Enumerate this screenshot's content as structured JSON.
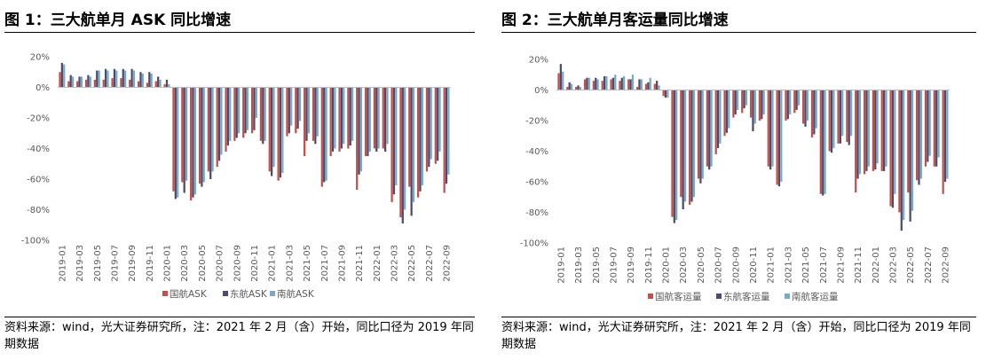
{
  "figures": [
    {
      "title": "图 1：三大航单月 ASK 同比增速",
      "note": "资料来源：wind，光大证券研究所，注：2021 年 2 月（含）开始，同比口径为 2019 年同期数据",
      "chart_data": {
        "type": "bar",
        "title": "",
        "xlabel": "",
        "ylabel": "",
        "ylim": [
          -100,
          20
        ],
        "yticks": [
          "20%",
          "0%",
          "-20%",
          "-40%",
          "-60%",
          "-80%",
          "-100%"
        ],
        "ytick_values": [
          20,
          0,
          -20,
          -40,
          -60,
          -80,
          -100
        ],
        "grid": false,
        "legend_position": "bottom",
        "categories": [
          "2019-01",
          "2019-02",
          "2019-03",
          "2019-04",
          "2019-05",
          "2019-06",
          "2019-07",
          "2019-08",
          "2019-09",
          "2019-10",
          "2019-11",
          "2019-12",
          "2020-01",
          "2020-02",
          "2020-03",
          "2020-04",
          "2020-05",
          "2020-06",
          "2020-07",
          "2020-08",
          "2020-09",
          "2020-10",
          "2020-11",
          "2020-12",
          "2021-01",
          "2021-02",
          "2021-03",
          "2021-04",
          "2021-05",
          "2021-06",
          "2021-07",
          "2021-08",
          "2021-09",
          "2021-10",
          "2021-11",
          "2021-12",
          "2022-01",
          "2022-02",
          "2022-03",
          "2022-04",
          "2022-05",
          "2022-06",
          "2022-07",
          "2022-08",
          "2022-09"
        ],
        "xtick_labels": [
          "2019-01",
          "2019-03",
          "2019-05",
          "2019-07",
          "2019-09",
          "2019-11",
          "2020-01",
          "2020-03",
          "2020-05",
          "2020-07",
          "2020-09",
          "2020-11",
          "2021-01",
          "2021-03",
          "2021-05",
          "2021-07",
          "2021-09",
          "2021-11",
          "2022-01",
          "2022-03",
          "2022-05",
          "2022-07",
          "2022-09"
        ],
        "series": [
          {
            "name": "国航ASK",
            "color": "#c0504d",
            "values": [
              10,
              4,
              4,
              5,
              5,
              5,
              6,
              6,
              5,
              4,
              3,
              4,
              2,
              -68,
              -62,
              -74,
              -63,
              -55,
              -52,
              -42,
              -35,
              -33,
              -30,
              -35,
              -55,
              -61,
              -32,
              -30,
              -45,
              -35,
              -65,
              -45,
              -42,
              -40,
              -67,
              -45,
              -40,
              -40,
              -75,
              -85,
              -65,
              -72,
              -55,
              -50,
              -69
            ]
          },
          {
            "name": "东航ASK",
            "color": "#4b4b6e",
            "values": [
              16,
              8,
              7,
              8,
              11,
              12,
              12,
              12,
              12,
              10,
              10,
              7,
              5,
              -73,
              -69,
              -72,
              -65,
              -60,
              -48,
              -38,
              -33,
              -30,
              -28,
              -37,
              -58,
              -59,
              -30,
              -27,
              -35,
              -37,
              -62,
              -42,
              -40,
              -38,
              -57,
              -45,
              -42,
              -42,
              -70,
              -89,
              -84,
              -68,
              -52,
              -48,
              -63
            ]
          },
          {
            "name": "南航ASK",
            "color": "#7aa9c4",
            "values": [
              15,
              7,
              7,
              7,
              11,
              11,
              11,
              11,
              11,
              9,
              9,
              5,
              2,
              -72,
              -61,
              -70,
              -62,
              -55,
              -44,
              -35,
              -30,
              -28,
              -20,
              -35,
              -52,
              -56,
              -25,
              -22,
              -30,
              -32,
              -61,
              -40,
              -37,
              -35,
              -55,
              -42,
              -40,
              -37,
              -64,
              -80,
              -75,
              -64,
              -47,
              -42,
              -57
            ]
          }
        ]
      }
    },
    {
      "title": "图 2：三大航单月客运量同比增速",
      "note": "资料来源：wind，光大证券研究所，注：2021 年 2 月（含）开始，同比口径为 2019 年同期数据",
      "chart_data": {
        "type": "bar",
        "title": "",
        "xlabel": "",
        "ylabel": "",
        "ylim": [
          -100,
          20
        ],
        "yticks": [
          "20%",
          "0%",
          "-20%",
          "-40%",
          "-60%",
          "-80%",
          "-100%"
        ],
        "ytick_values": [
          20,
          0,
          -20,
          -40,
          -60,
          -80,
          -100
        ],
        "grid": false,
        "legend_position": "bottom",
        "categories": [
          "2019-01",
          "2019-02",
          "2019-03",
          "2019-04",
          "2019-05",
          "2019-06",
          "2019-07",
          "2019-08",
          "2019-09",
          "2019-10",
          "2019-11",
          "2019-12",
          "2020-01",
          "2020-02",
          "2020-03",
          "2020-04",
          "2020-05",
          "2020-06",
          "2020-07",
          "2020-08",
          "2020-09",
          "2020-10",
          "2020-11",
          "2020-12",
          "2021-01",
          "2021-02",
          "2021-03",
          "2021-04",
          "2021-05",
          "2021-06",
          "2021-07",
          "2021-08",
          "2021-09",
          "2021-10",
          "2021-11",
          "2021-12",
          "2022-01",
          "2022-02",
          "2022-03",
          "2022-04",
          "2022-05",
          "2022-06",
          "2022-07",
          "2022-08",
          "2022-09"
        ],
        "xtick_labels": [
          "2019-01",
          "2019-03",
          "2019-05",
          "2019-07",
          "2019-09",
          "2019-11",
          "2020-01",
          "2020-03",
          "2020-05",
          "2020-07",
          "2020-09",
          "2020-11",
          "2021-01",
          "2021-03",
          "2021-05",
          "2021-07",
          "2021-09",
          "2021-11",
          "2022-01",
          "2022-03",
          "2022-05",
          "2022-07",
          "2022-09"
        ],
        "series": [
          {
            "name": "国航客运量",
            "color": "#c0504d",
            "values": [
              11,
              2,
              2,
              7,
              6,
              6,
              7,
              6,
              7,
              2,
              4,
              4,
              -4,
              -83,
              -70,
              -75,
              -58,
              -50,
              -42,
              -30,
              -18,
              -15,
              -18,
              -20,
              -50,
              -62,
              -20,
              -15,
              -22,
              -31,
              -68,
              -40,
              -35,
              -34,
              -67,
              -55,
              -53,
              -53,
              -76,
              -80,
              -67,
              -59,
              -50,
              -50,
              -68
            ]
          },
          {
            "name": "东航客运量",
            "color": "#4b4b6e",
            "values": [
              17,
              5,
              3,
              8,
              8,
              9,
              8,
              8,
              7,
              7,
              5,
              6,
              -5,
              -87,
              -78,
              -73,
              -61,
              -52,
              -38,
              -28,
              -16,
              -12,
              -27,
              -19,
              -52,
              -63,
              -19,
              -13,
              -24,
              -29,
              -69,
              -41,
              -35,
              -36,
              -58,
              -53,
              -52,
              -53,
              -77,
              -92,
              -86,
              -62,
              -47,
              -50,
              -60
            ]
          },
          {
            "name": "南航客运量",
            "color": "#7aa9c4",
            "values": [
              12,
              4,
              2,
              8,
              7,
              9,
              10,
              9,
              10,
              7,
              8,
              3,
              -5,
              -85,
              -73,
              -70,
              -58,
              -50,
              -35,
              -25,
              -13,
              -10,
              -22,
              -16,
              -50,
              -60,
              -16,
              -10,
              -20,
              -25,
              -68,
              -38,
              -30,
              -30,
              -55,
              -50,
              -48,
              -50,
              -68,
              -85,
              -79,
              -58,
              -43,
              -44,
              -58
            ]
          }
        ]
      }
    }
  ]
}
